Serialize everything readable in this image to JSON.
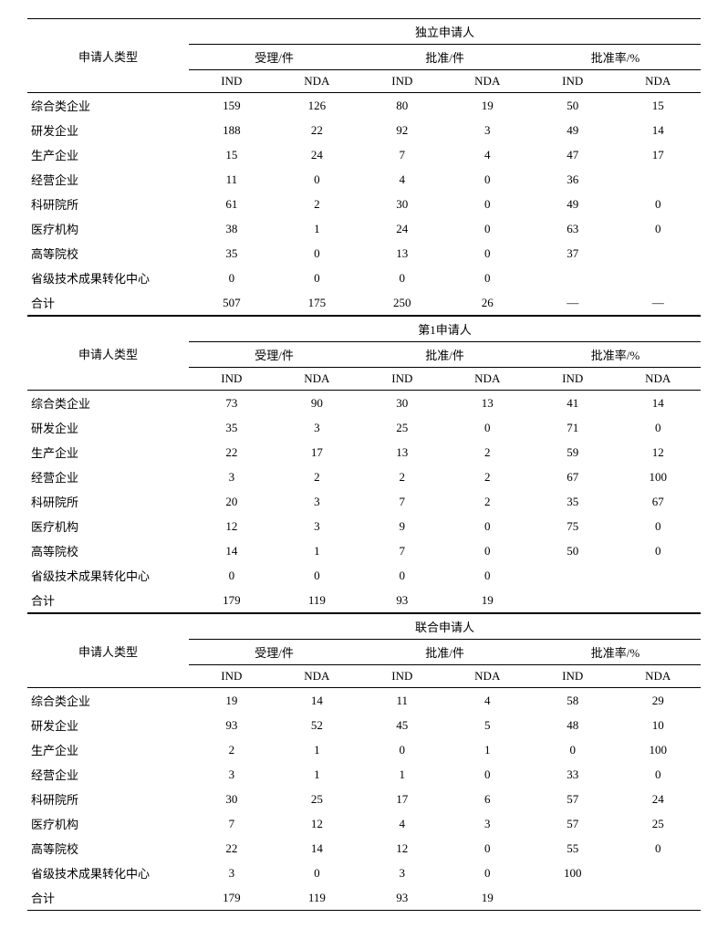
{
  "columns": {
    "rowHeader": "申请人类型",
    "group1": "受理/件",
    "group2": "批准/件",
    "group3": "批准率/%",
    "sub1": "IND",
    "sub2": "NDA"
  },
  "sections": [
    {
      "title": "独立申请人",
      "rows": [
        {
          "label": "综合类企业",
          "v": [
            "159",
            "126",
            "80",
            "19",
            "50",
            "15"
          ]
        },
        {
          "label": "研发企业",
          "v": [
            "188",
            "22",
            "92",
            "3",
            "49",
            "14"
          ]
        },
        {
          "label": "生产企业",
          "v": [
            "15",
            "24",
            "7",
            "4",
            "47",
            "17"
          ]
        },
        {
          "label": "经营企业",
          "v": [
            "11",
            "0",
            "4",
            "0",
            "36",
            ""
          ]
        },
        {
          "label": "科研院所",
          "v": [
            "61",
            "2",
            "30",
            "0",
            "49",
            "0"
          ]
        },
        {
          "label": "医疗机构",
          "v": [
            "38",
            "1",
            "24",
            "0",
            "63",
            "0"
          ]
        },
        {
          "label": "高等院校",
          "v": [
            "35",
            "0",
            "13",
            "0",
            "37",
            ""
          ]
        },
        {
          "label": "省级技术成果转化中心",
          "v": [
            "0",
            "0",
            "0",
            "0",
            "",
            ""
          ]
        },
        {
          "label": "合计",
          "v": [
            "507",
            "175",
            "250",
            "26",
            "—",
            "—"
          ]
        }
      ]
    },
    {
      "title": "第1申请人",
      "rows": [
        {
          "label": "综合类企业",
          "v": [
            "73",
            "90",
            "30",
            "13",
            "41",
            "14"
          ]
        },
        {
          "label": "研发企业",
          "v": [
            "35",
            "3",
            "25",
            "0",
            "71",
            "0"
          ]
        },
        {
          "label": "生产企业",
          "v": [
            "22",
            "17",
            "13",
            "2",
            "59",
            "12"
          ]
        },
        {
          "label": "经营企业",
          "v": [
            "3",
            "2",
            "2",
            "2",
            "67",
            "100"
          ]
        },
        {
          "label": "科研院所",
          "v": [
            "20",
            "3",
            "7",
            "2",
            "35",
            "67"
          ]
        },
        {
          "label": "医疗机构",
          "v": [
            "12",
            "3",
            "9",
            "0",
            "75",
            "0"
          ]
        },
        {
          "label": "高等院校",
          "v": [
            "14",
            "1",
            "7",
            "0",
            "50",
            "0"
          ]
        },
        {
          "label": "省级技术成果转化中心",
          "v": [
            "0",
            "0",
            "0",
            "0",
            "",
            ""
          ]
        },
        {
          "label": "合计",
          "v": [
            "179",
            "119",
            "93",
            "19",
            "",
            ""
          ]
        }
      ]
    },
    {
      "title": "联合申请人",
      "rows": [
        {
          "label": "综合类企业",
          "v": [
            "19",
            "14",
            "11",
            "4",
            "58",
            "29"
          ]
        },
        {
          "label": "研发企业",
          "v": [
            "93",
            "52",
            "45",
            "5",
            "48",
            "10"
          ]
        },
        {
          "label": "生产企业",
          "v": [
            "2",
            "1",
            "0",
            "1",
            "0",
            "100"
          ]
        },
        {
          "label": "经营企业",
          "v": [
            "3",
            "1",
            "1",
            "0",
            "33",
            "0"
          ]
        },
        {
          "label": "科研院所",
          "v": [
            "30",
            "25",
            "17",
            "6",
            "57",
            "24"
          ]
        },
        {
          "label": "医疗机构",
          "v": [
            "7",
            "12",
            "4",
            "3",
            "57",
            "25"
          ]
        },
        {
          "label": "高等院校",
          "v": [
            "22",
            "14",
            "12",
            "0",
            "55",
            "0"
          ]
        },
        {
          "label": "省级技术成果转化中心",
          "v": [
            "3",
            "0",
            "3",
            "0",
            "100",
            ""
          ]
        },
        {
          "label": "合计",
          "v": [
            "179",
            "119",
            "93",
            "19",
            "",
            ""
          ]
        }
      ]
    }
  ]
}
